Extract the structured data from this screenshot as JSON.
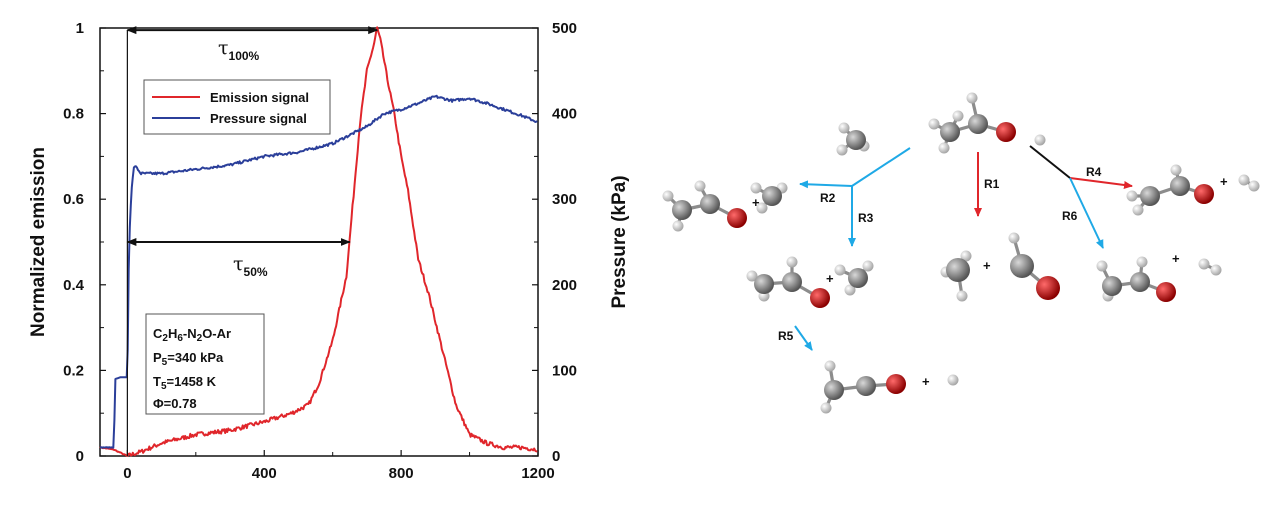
{
  "chart_data": {
    "type": "line",
    "xlabel": "",
    "ylabel": "Normalized emission",
    "y2label": "Pressure (kPa)",
    "xlim": [
      -80,
      1200
    ],
    "ylim": [
      0,
      1
    ],
    "y2lim": [
      0,
      500
    ],
    "xticks": [
      "0",
      "400",
      "800",
      "1200"
    ],
    "yticks": [
      "0",
      "0.2",
      "0.4",
      "0.6",
      "0.8",
      "1"
    ],
    "y2ticks": [
      "0",
      "100",
      "200",
      "300",
      "400",
      "500"
    ],
    "legend": {
      "placement": "top-left"
    },
    "series": [
      {
        "name": "Emission signal",
        "axis": "left",
        "color": "#e0262b",
        "x": [
          -80,
          -40,
          0,
          40,
          100,
          200,
          300,
          400,
          480,
          530,
          560,
          600,
          640,
          660,
          680,
          700,
          720,
          730,
          740,
          760,
          780,
          800,
          820,
          850,
          880,
          920,
          960,
          1000,
          1050,
          1100,
          1150,
          1200
        ],
        "y": [
          0.02,
          0.015,
          0.0,
          0.01,
          0.03,
          0.05,
          0.06,
          0.08,
          0.1,
          0.12,
          0.17,
          0.27,
          0.42,
          0.6,
          0.78,
          0.9,
          0.96,
          1.0,
          0.97,
          0.88,
          0.8,
          0.7,
          0.62,
          0.46,
          0.38,
          0.25,
          0.12,
          0.05,
          0.03,
          0.02,
          0.02,
          0.015
        ]
      },
      {
        "name": "Pressure signal",
        "axis": "right",
        "color": "#2b3f9a",
        "x": [
          -80,
          -40,
          -35,
          -20,
          0,
          5,
          12,
          20,
          40,
          100,
          200,
          300,
          400,
          500,
          600,
          700,
          750,
          800,
          850,
          900,
          950,
          1000,
          1050,
          1100,
          1150,
          1200
        ],
        "y": [
          10,
          10,
          90,
          92,
          92,
          250,
          310,
          340,
          330,
          330,
          335,
          340,
          350,
          355,
          365,
          385,
          400,
          405,
          412,
          420,
          415,
          418,
          412,
          405,
          398,
          390
        ]
      }
    ],
    "annotations": {
      "tau100_label": "τ100%",
      "tau50_label": "τ50%",
      "tau100_x": [
        0,
        730
      ],
      "tau100_y": 0.995,
      "tau50_x": [
        0,
        650
      ],
      "tau50_y": 0.5
    },
    "conditions": {
      "mixture": {
        "a": "C",
        "a_sub": "2",
        "b": "H",
        "b_sub": "6",
        "c": "-N",
        "c_sub": "2",
        "d": "O-Ar"
      },
      "pressure": {
        "sym": "P",
        "sub": "5",
        "rest": "=340 kPa"
      },
      "temperature": {
        "sym": "T",
        "sub": "5",
        "rest": "=1458 K"
      },
      "phi": "Φ=0.78"
    }
  },
  "diagram": {
    "reactions": [
      "R1",
      "R2",
      "R3",
      "R4",
      "R5",
      "R6"
    ],
    "plus": "+",
    "colors": {
      "red_arrow": "#e0262b",
      "blue_arrow": "#1fa9e6",
      "black_line": "#111111",
      "carbon": "#7f7f7f",
      "hydrogen": "#d9d9d9",
      "oxygen": "#d0101a"
    }
  }
}
